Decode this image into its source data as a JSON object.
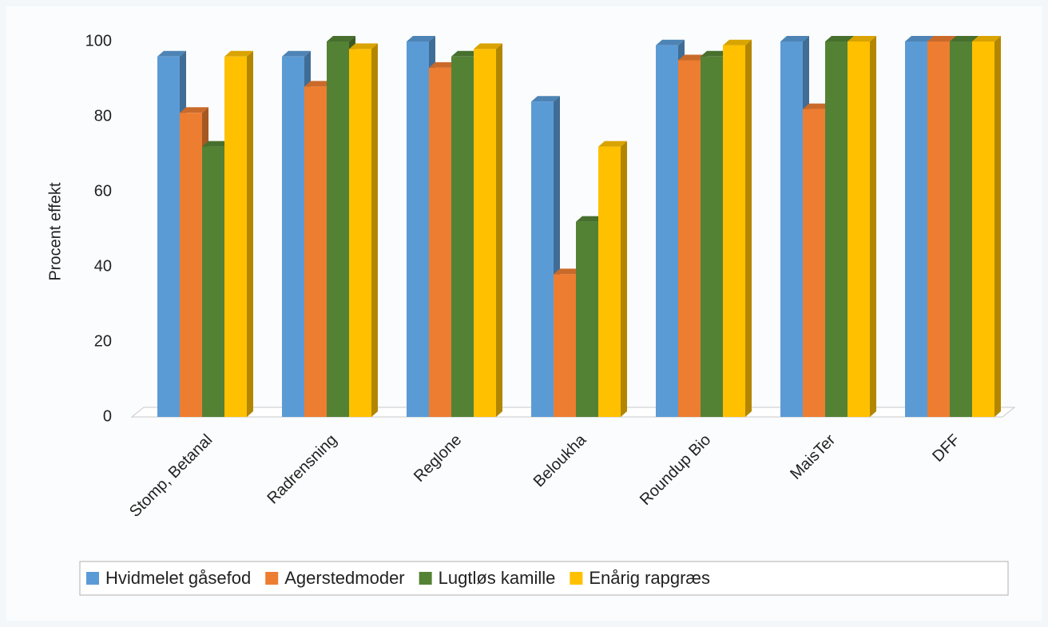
{
  "chart_data": {
    "type": "bar",
    "y_label": "Procent effekt",
    "categories": [
      "Stomp, Betanal",
      "Radrensning",
      "Reglone",
      "Beloukha",
      "Roundup Bio",
      "MaisTer",
      "DFF"
    ],
    "series": [
      {
        "name": "Hvidmelet gåsefod",
        "color": "#5b9bd5",
        "values": [
          96,
          96,
          100,
          84,
          99,
          100,
          100
        ]
      },
      {
        "name": "Agerstedmoder",
        "color": "#ed7d31",
        "values": [
          81,
          88,
          93,
          38,
          95,
          82,
          100
        ]
      },
      {
        "name": "Lugtløs kamille",
        "color": "#548235",
        "values": [
          72,
          100,
          96,
          52,
          96,
          100,
          100
        ]
      },
      {
        "name": "Enårig rapgræs",
        "color": "#ffc000",
        "values": [
          96,
          98,
          98,
          72,
          99,
          100,
          100
        ]
      }
    ],
    "ylim": [
      0,
      100
    ],
    "yticks": [
      0,
      20,
      40,
      60,
      80,
      100
    ],
    "grid": false,
    "legend": "bottom"
  }
}
